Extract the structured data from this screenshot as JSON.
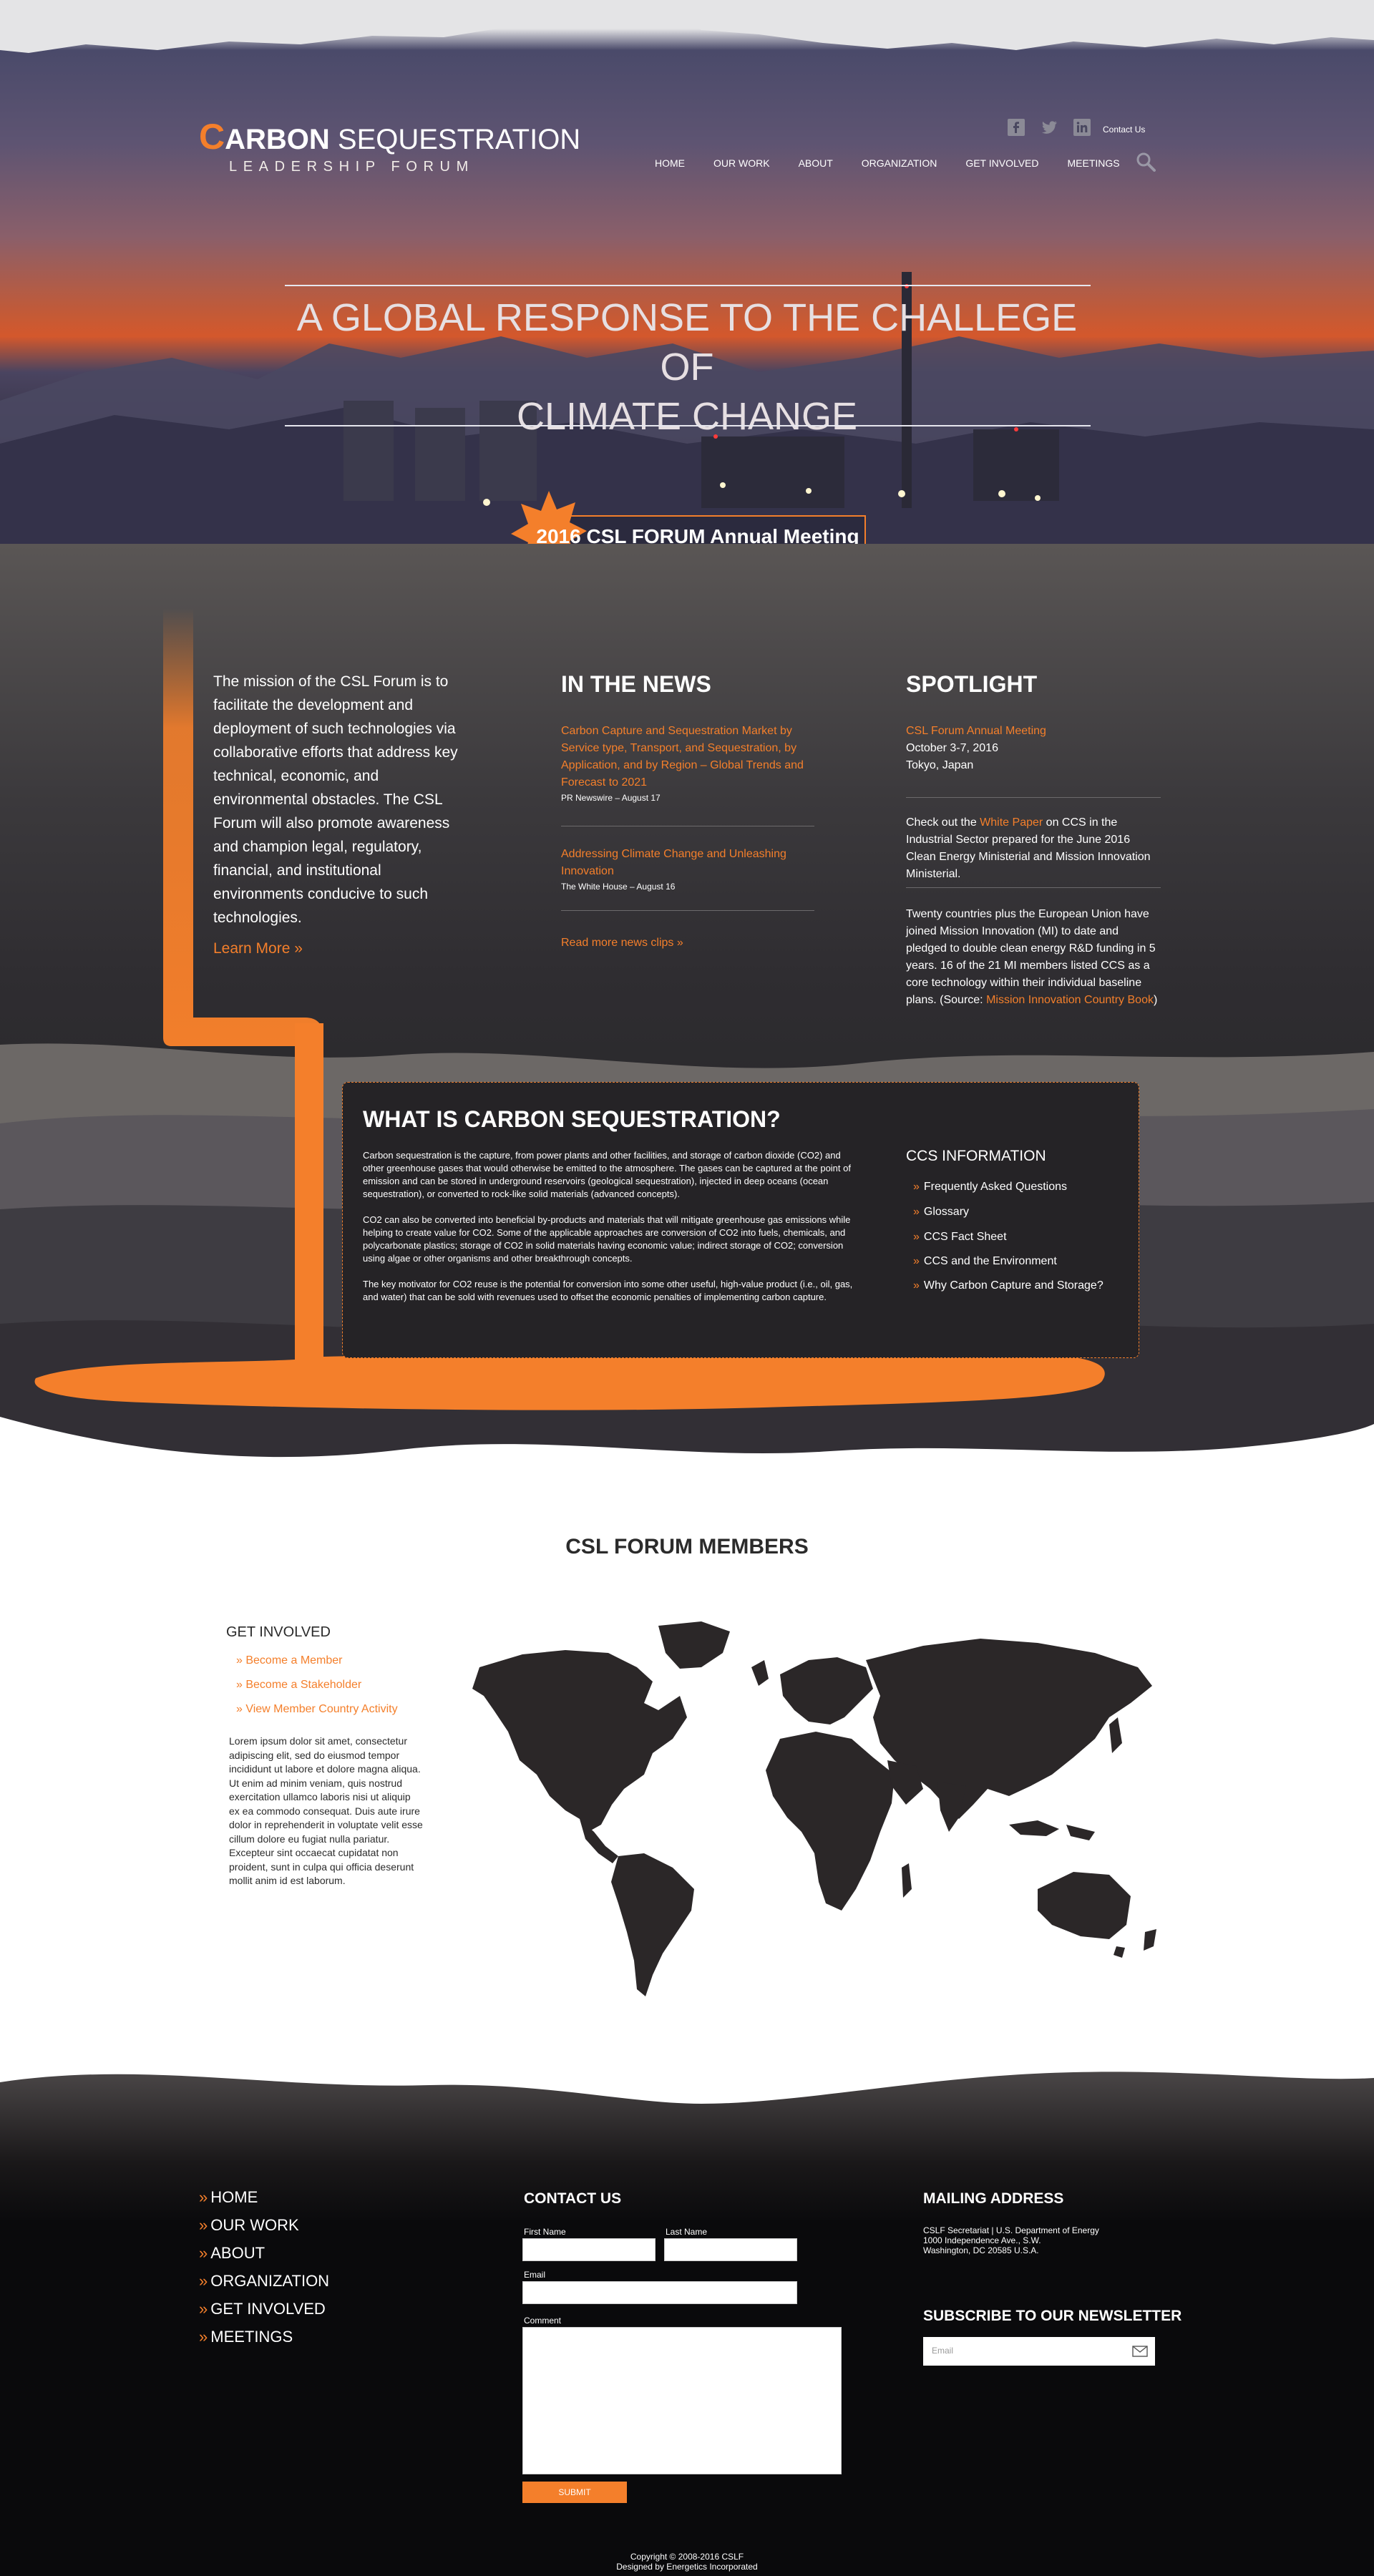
{
  "header": {
    "logo_c": "C",
    "logo_bold": "ARBON",
    "logo_rest": " SEQUESTRATION",
    "logo_sub": "LEADERSHIP FORUM",
    "contact_label": "Contact Us",
    "social_icons": [
      "facebook-icon",
      "twitter-icon",
      "linkedin-icon"
    ],
    "nav": [
      "HOME",
      "OUR WORK",
      "ABOUT",
      "ORGANIZATION",
      "GET INVOLVED",
      "MEETINGS"
    ]
  },
  "hero": {
    "tagline_line1": "A GLOBAL RESPONSE TO THE CHALLEGE OF",
    "tagline_line2": "CLIMATE CHANGE",
    "meeting_label": "2016 CSL FORUM Annual Meeting"
  },
  "mission": {
    "text": "The mission of the CSL Forum is to facilitate the development and deployment of such technologies via collaborative efforts that address key technical, economic, and environmental obstacles. The CSL Forum will also promote awareness and champion legal, regulatory, financial, and institutional environments conducive to such technologies.",
    "learn_more": "Learn More »"
  },
  "news": {
    "title": "IN THE NEWS",
    "items": [
      {
        "headline": "Carbon Capture and Sequestration Market by Service type, Transport, and Sequestration, by Application, and by Region – Global Trends and Forecast to 2021",
        "source": "PR Newswire – August 17"
      },
      {
        "headline": "Addressing Climate Change and Unleashing Innovation",
        "source": "The White House – August 16"
      }
    ],
    "more": "Read more news clips »"
  },
  "spotlight": {
    "title": "SPOTLIGHT",
    "event_link": "CSL Forum Annual Meeting",
    "event_date": "October 3-7, 2016",
    "event_place": "Tokyo, Japan",
    "p2_before": "Check out the ",
    "p2_link": "White Paper",
    "p2_after": " on CCS in the Industrial Sector prepared for the June 2016 Clean Energy Ministerial and Mission Innovation Ministerial.",
    "p3_before": "Twenty countries plus the European Union have joined Mission Innovation (MI) to date and pledged to double clean energy R&D funding in 5 years. 16 of the 21 MI members listed CCS as a core technology within their individual baseline plans. (Source: ",
    "p3_link": "Mission Innovation Country Book",
    "p3_after": ")"
  },
  "what": {
    "title": "WHAT IS CARBON SEQUESTRATION?",
    "p1": "Carbon sequestration is the capture, from power plants and other facilities, and storage of carbon dioxide (CO2) and other greenhouse gases that would otherwise be emitted to the atmosphere. The gases can be captured at the point of emission and can be stored in underground reservoirs (geological sequestration), injected in deep oceans (ocean sequestration), or converted to rock-like solid materials (advanced concepts).",
    "p2": "CO2 can also be converted into beneficial by-products and materials that will mitigate greenhouse gas emissions while helping to create value for CO2. Some of the applicable approaches are conversion of CO2 into fuels, chemicals, and polycarbonate plastics; storage of CO2 in solid materials having economic value; indirect storage of CO2; conversion using algae or other organisms and other breakthrough concepts.",
    "p3": "The key motivator for CO2 reuse is the potential for conversion into some other useful, high-value product (i.e., oil, gas, and water) that can be sold with revenues used to offset the economic penalties of implementing carbon capture.",
    "ccs_title": "CCS INFORMATION",
    "ccs_items": [
      "Frequently Asked Questions",
      "Glossary",
      "CCS Fact Sheet",
      "CCS and the Environment",
      "Why Carbon Capture and Storage?"
    ]
  },
  "members": {
    "title": "CSL FORUM MEMBERS",
    "gi_title": "GET INVOLVED",
    "gi_items": [
      "» Become a Member",
      "» Become a Stakeholder",
      "» View Member Country Activity"
    ],
    "lorem": "Lorem ipsum dolor sit amet, consectetur adipiscing elit, sed do eiusmod tempor incididunt ut labore et dolore magna aliqua. Ut enim ad minim veniam, quis nostrud exercitation ullamco laboris nisi ut aliquip ex ea commodo consequat. Duis aute irure dolor in reprehenderit in voluptate velit esse cillum dolore eu fugiat nulla pariatur. Excepteur sint occaecat cupidatat non proident, sunt in culpa qui officia deserunt mollit anim id est laborum."
  },
  "footer": {
    "nav": [
      "HOME",
      "OUR WORK",
      "ABOUT",
      "ORGANIZATION",
      "GET INVOLVED",
      "MEETINGS"
    ],
    "contact_title": "CONTACT US",
    "first_name": "First Name",
    "last_name": "Last Name",
    "email": "Email",
    "comment": "Comment",
    "submit": "SUBMIT",
    "mailing_title": "MAILING ADDRESS",
    "addr1": "CSLF Secretariat | U.S. Department of Energy",
    "addr2": "1000 Independence Ave., S.W.",
    "addr3": "Washington, DC 20585 U.S.A.",
    "newsletter_title": "SUBSCRIBE TO OUR NEWSLETTER",
    "newsletter_placeholder": "Email",
    "copyright": "Copyright © 2008-2016 CSLF",
    "designed": "Designed by Energetics Incorporated"
  },
  "colors": {
    "accent": "#f47f2b",
    "dark": "#2b2a2d",
    "footer": "#0a0a0c"
  }
}
